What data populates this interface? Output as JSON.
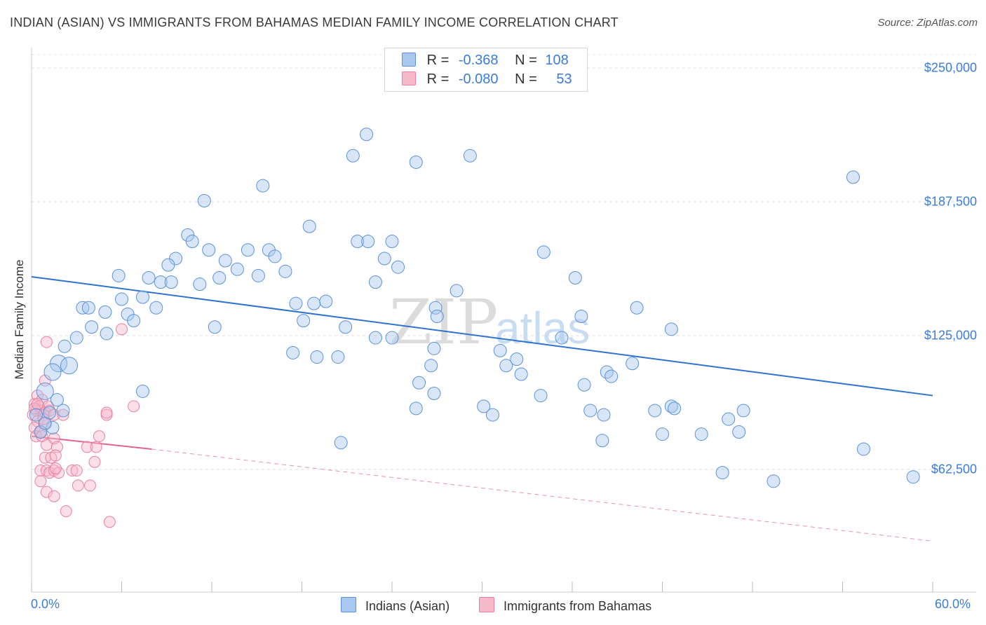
{
  "title": "INDIAN (ASIAN) VS IMMIGRANTS FROM BAHAMAS MEDIAN FAMILY INCOME CORRELATION CHART",
  "source": "Source: ZipAtlas.com",
  "legend_top": {
    "rows": [
      {
        "r_label": "R =",
        "r_value": "-0.368",
        "n_label": "N =",
        "n_value": "108"
      },
      {
        "r_label": "R =",
        "r_value": "-0.080",
        "n_label": "N =",
        "n_value": "53"
      }
    ]
  },
  "watermark": {
    "zip": "ZIP",
    "atlas": "atlas"
  },
  "chart_data": {
    "type": "scatter",
    "title": "INDIAN (ASIAN) VS IMMIGRANTS FROM BAHAMAS MEDIAN FAMILY INCOME CORRELATION CHART",
    "xlabel": "",
    "ylabel": "Median Family Income",
    "xlim": [
      0,
      60
    ],
    "ylim": [
      0,
      262000
    ],
    "x_tick_labels": [
      "0.0%",
      "60.0%"
    ],
    "y_ticks": [
      62500,
      125000,
      187500,
      250000
    ],
    "y_tick_labels": [
      "$62,500",
      "$125,000",
      "$187,500",
      "$250,000"
    ],
    "legend": [
      "Indians (Asian)",
      "Immigrants from Bahamas"
    ],
    "colors": {
      "series1_fill": "#a9c8ef",
      "series1_stroke": "#5a93d8",
      "series1_line": "#2f73d0",
      "series2_fill": "#f6b8cb",
      "series2_stroke": "#e8809f",
      "series2_line": "#e0648e"
    },
    "series": [
      {
        "name": "Indians (Asian)",
        "r": -0.368,
        "n": 108,
        "trend": {
          "x": [
            0,
            60
          ],
          "y": [
            152500,
            97000
          ]
        },
        "points": [
          [
            22.3,
            219000
          ],
          [
            21.4,
            209000
          ],
          [
            25.6,
            206000
          ],
          [
            29.2,
            209000
          ],
          [
            54.7,
            199000
          ],
          [
            15.4,
            195000
          ],
          [
            11.5,
            188000
          ],
          [
            18.5,
            176000
          ],
          [
            10.4,
            172000
          ],
          [
            10.7,
            169000
          ],
          [
            21.7,
            169000
          ],
          [
            22.4,
            169000
          ],
          [
            24.0,
            169000
          ],
          [
            34.1,
            164000
          ],
          [
            11.8,
            165000
          ],
          [
            14.4,
            165000
          ],
          [
            15.8,
            165000
          ],
          [
            9.6,
            161000
          ],
          [
            12.9,
            160000
          ],
          [
            23.5,
            161000
          ],
          [
            16.2,
            162000
          ],
          [
            24.4,
            157000
          ],
          [
            9.1,
            158000
          ],
          [
            13.7,
            156000
          ],
          [
            15.1,
            153000
          ],
          [
            16.9,
            155000
          ],
          [
            5.8,
            153000
          ],
          [
            7.8,
            152000
          ],
          [
            12.5,
            152000
          ],
          [
            36.2,
            152000
          ],
          [
            8.6,
            150000
          ],
          [
            9.3,
            150000
          ],
          [
            11.2,
            149000
          ],
          [
            22.9,
            150000
          ],
          [
            28.3,
            146000
          ],
          [
            7.4,
            143000
          ],
          [
            6.0,
            142000
          ],
          [
            17.6,
            140000
          ],
          [
            18.8,
            140000
          ],
          [
            19.6,
            141000
          ],
          [
            3.4,
            138000
          ],
          [
            3.8,
            138000
          ],
          [
            8.3,
            138000
          ],
          [
            26.9,
            138000
          ],
          [
            40.3,
            138000
          ],
          [
            4.9,
            136000
          ],
          [
            6.4,
            135000
          ],
          [
            27.0,
            134000
          ],
          [
            36.6,
            134000
          ],
          [
            6.8,
            132000
          ],
          [
            18.1,
            132000
          ],
          [
            4.0,
            129000
          ],
          [
            12.2,
            129000
          ],
          [
            20.9,
            129000
          ],
          [
            42.6,
            128000
          ],
          [
            5.0,
            126000
          ],
          [
            3.0,
            124000
          ],
          [
            22.9,
            124000
          ],
          [
            24.0,
            124000
          ],
          [
            35.3,
            124000
          ],
          [
            2.2,
            120000
          ],
          [
            26.8,
            119000
          ],
          [
            31.2,
            118000
          ],
          [
            17.4,
            117000
          ],
          [
            19.0,
            115000
          ],
          [
            20.4,
            115000
          ],
          [
            32.3,
            114000
          ],
          [
            1.8,
            112000
          ],
          [
            2.5,
            111000
          ],
          [
            26.6,
            111000
          ],
          [
            31.6,
            111000
          ],
          [
            40.0,
            112000
          ],
          [
            1.4,
            108000
          ],
          [
            32.6,
            107000
          ],
          [
            38.3,
            108000
          ],
          [
            38.6,
            106000
          ],
          [
            25.8,
            103000
          ],
          [
            36.8,
            102000
          ],
          [
            7.4,
            99000
          ],
          [
            0.9,
            99000
          ],
          [
            26.8,
            98000
          ],
          [
            33.9,
            97000
          ],
          [
            25.6,
            91000
          ],
          [
            30.1,
            92000
          ],
          [
            37.2,
            90000
          ],
          [
            38.1,
            88000
          ],
          [
            41.5,
            90000
          ],
          [
            42.6,
            92000
          ],
          [
            42.8,
            91000
          ],
          [
            47.4,
            90000
          ],
          [
            30.7,
            88000
          ],
          [
            46.4,
            86000
          ],
          [
            47.1,
            80000
          ],
          [
            42.0,
            79000
          ],
          [
            44.6,
            79000
          ],
          [
            38.0,
            76000
          ],
          [
            20.6,
            75000
          ],
          [
            55.4,
            72000
          ],
          [
            46.0,
            61000
          ],
          [
            49.4,
            57000
          ],
          [
            58.7,
            59000
          ],
          [
            1.4,
            82000
          ],
          [
            0.6,
            80000
          ],
          [
            0.9,
            84000
          ],
          [
            2.1,
            90000
          ],
          [
            1.7,
            95000
          ],
          [
            1.2,
            89000
          ],
          [
            0.3,
            88000
          ]
        ]
      },
      {
        "name": "Immigrants from Bahamas",
        "r": -0.08,
        "n": 53,
        "trend_solid": {
          "x": [
            0,
            8
          ],
          "y": [
            78000,
            72000
          ]
        },
        "trend_dashed": {
          "x": [
            8,
            60
          ],
          "y": [
            72000,
            29000
          ]
        },
        "points": [
          [
            6.0,
            128000
          ],
          [
            1.0,
            122000
          ],
          [
            0.9,
            104000
          ],
          [
            0.4,
            97000
          ],
          [
            0.7,
            95000
          ],
          [
            0.2,
            93000
          ],
          [
            0.5,
            92000
          ],
          [
            1.1,
            92000
          ],
          [
            0.3,
            90000
          ],
          [
            0.6,
            90000
          ],
          [
            0.9,
            89000
          ],
          [
            1.2,
            90000
          ],
          [
            0.8,
            88000
          ],
          [
            0.1,
            88000
          ],
          [
            1.5,
            88000
          ],
          [
            2.1,
            88000
          ],
          [
            5.0,
            88000
          ],
          [
            5.0,
            89000
          ],
          [
            6.8,
            92000
          ],
          [
            0.4,
            85000
          ],
          [
            0.9,
            84000
          ],
          [
            0.2,
            82000
          ],
          [
            0.6,
            80000
          ],
          [
            0.3,
            78000
          ],
          [
            0.7,
            78000
          ],
          [
            1.5,
            77000
          ],
          [
            4.5,
            78000
          ],
          [
            1.0,
            74000
          ],
          [
            1.7,
            73000
          ],
          [
            3.7,
            73000
          ],
          [
            4.3,
            73000
          ],
          [
            0.9,
            68000
          ],
          [
            1.3,
            68000
          ],
          [
            1.6,
            69000
          ],
          [
            4.2,
            66000
          ],
          [
            0.6,
            62000
          ],
          [
            1.0,
            62000
          ],
          [
            1.2,
            61000
          ],
          [
            1.5,
            62000
          ],
          [
            1.8,
            61000
          ],
          [
            1.6,
            63000
          ],
          [
            2.7,
            62000
          ],
          [
            3.0,
            62000
          ],
          [
            0.6,
            57000
          ],
          [
            3.1,
            55000
          ],
          [
            3.9,
            55000
          ],
          [
            1.0,
            52000
          ],
          [
            1.5,
            50000
          ],
          [
            2.3,
            43000
          ],
          [
            5.2,
            38000
          ],
          [
            0.2,
            91000
          ],
          [
            0.4,
            93000
          ],
          [
            0.8,
            86000
          ]
        ]
      }
    ]
  }
}
